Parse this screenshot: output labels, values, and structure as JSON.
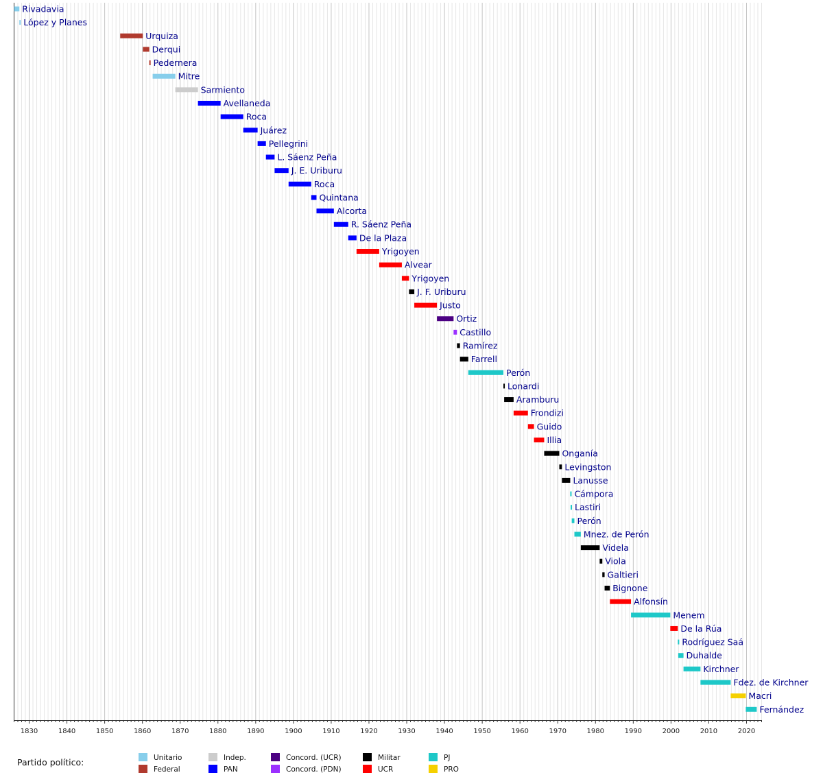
{
  "chart_data": {
    "type": "bar",
    "orientation": "horizontal-timeline",
    "xlim": [
      1826,
      2024
    ],
    "x_ticks": [
      1830,
      1840,
      1850,
      1860,
      1870,
      1880,
      1890,
      1900,
      1910,
      1920,
      1930,
      1940,
      1950,
      1960,
      1970,
      1980,
      1990,
      2000,
      2010,
      2020
    ],
    "grid": true,
    "legend_title": "Partido político:",
    "legend_placement": "bottom",
    "legend": [
      {
        "key": "Unitario",
        "label": "Unitario",
        "color": "#87CEEB"
      },
      {
        "key": "Federal",
        "label": "Federal",
        "color": "#B03A2E"
      },
      {
        "key": "Indep",
        "label": "Indep.",
        "color": "#CCCCCC"
      },
      {
        "key": "PAN",
        "label": "PAN",
        "color": "#0000FF"
      },
      {
        "key": "ConcordUCR",
        "label": "Concord. (UCR)",
        "color": "#4B0082"
      },
      {
        "key": "ConcordPDN",
        "label": "Concord. (PDN)",
        "color": "#9B30FF"
      },
      {
        "key": "Militar",
        "label": "Militar",
        "color": "#000000"
      },
      {
        "key": "UCR",
        "label": "UCR",
        "color": "#FF0000"
      },
      {
        "key": "PJ",
        "label": "PJ",
        "color": "#1EC8C8"
      },
      {
        "key": "PRO",
        "label": "PRO",
        "color": "#F5D000"
      }
    ],
    "bars": [
      {
        "name": "Rivadavia",
        "start": 1826.1,
        "end": 1827.5,
        "party": "Unitario"
      },
      {
        "name": "López y Planes",
        "start": 1827.5,
        "end": 1827.7,
        "party": "Unitario"
      },
      {
        "name": "Urquiza",
        "start": 1854.2,
        "end": 1860.2,
        "party": "Federal"
      },
      {
        "name": "Derqui",
        "start": 1860.2,
        "end": 1861.9,
        "party": "Federal"
      },
      {
        "name": "Pedernera",
        "start": 1861.9,
        "end": 1862.0,
        "party": "Federal"
      },
      {
        "name": "Mitre",
        "start": 1862.8,
        "end": 1868.8,
        "party": "Unitario"
      },
      {
        "name": "Sarmiento",
        "start": 1868.8,
        "end": 1874.8,
        "party": "Indep"
      },
      {
        "name": "Avellaneda",
        "start": 1874.8,
        "end": 1880.8,
        "party": "PAN"
      },
      {
        "name": "Roca",
        "start": 1880.8,
        "end": 1886.8,
        "party": "PAN"
      },
      {
        "name": "Juárez",
        "start": 1886.8,
        "end": 1890.6,
        "party": "PAN"
      },
      {
        "name": "Pellegrini",
        "start": 1890.6,
        "end": 1892.8,
        "party": "PAN"
      },
      {
        "name": "L. Sáenz Peña",
        "start": 1892.8,
        "end": 1895.1,
        "party": "PAN"
      },
      {
        "name": "J. E. Uriburu",
        "start": 1895.1,
        "end": 1898.8,
        "party": "PAN"
      },
      {
        "name": "Roca",
        "start": 1898.8,
        "end": 1904.8,
        "party": "PAN"
      },
      {
        "name": "Quintana",
        "start": 1904.8,
        "end": 1906.2,
        "party": "PAN"
      },
      {
        "name": "Alcorta",
        "start": 1906.2,
        "end": 1910.8,
        "party": "PAN"
      },
      {
        "name": "R. Sáenz Peña",
        "start": 1910.8,
        "end": 1914.6,
        "party": "PAN"
      },
      {
        "name": "De la Plaza",
        "start": 1914.6,
        "end": 1916.8,
        "party": "PAN"
      },
      {
        "name": "Yrigoyen",
        "start": 1916.8,
        "end": 1922.8,
        "party": "UCR"
      },
      {
        "name": "Alvear",
        "start": 1922.8,
        "end": 1928.8,
        "party": "UCR"
      },
      {
        "name": "Yrigoyen",
        "start": 1928.8,
        "end": 1930.7,
        "party": "UCR"
      },
      {
        "name": "J. F. Uriburu",
        "start": 1930.7,
        "end": 1932.1,
        "party": "Militar"
      },
      {
        "name": "Justo",
        "start": 1932.1,
        "end": 1938.1,
        "party": "UCR"
      },
      {
        "name": "Ortiz",
        "start": 1938.1,
        "end": 1942.5,
        "party": "ConcordUCR"
      },
      {
        "name": "Castillo",
        "start": 1942.5,
        "end": 1943.4,
        "party": "ConcordPDN"
      },
      {
        "name": "Ramírez",
        "start": 1943.4,
        "end": 1944.2,
        "party": "Militar"
      },
      {
        "name": "Farrell",
        "start": 1944.2,
        "end": 1946.4,
        "party": "Militar"
      },
      {
        "name": "Perón",
        "start": 1946.4,
        "end": 1955.7,
        "party": "PJ"
      },
      {
        "name": "Lonardi",
        "start": 1955.7,
        "end": 1955.9,
        "party": "Militar"
      },
      {
        "name": "Aramburu",
        "start": 1955.9,
        "end": 1958.4,
        "party": "Militar"
      },
      {
        "name": "Frondizi",
        "start": 1958.4,
        "end": 1962.2,
        "party": "UCR"
      },
      {
        "name": "Guido",
        "start": 1962.2,
        "end": 1963.8,
        "party": "UCR"
      },
      {
        "name": "Illia",
        "start": 1963.8,
        "end": 1966.5,
        "party": "UCR"
      },
      {
        "name": "Onganía",
        "start": 1966.5,
        "end": 1970.5,
        "party": "Militar"
      },
      {
        "name": "Levingston",
        "start": 1970.5,
        "end": 1971.2,
        "party": "Militar"
      },
      {
        "name": "Lanusse",
        "start": 1971.2,
        "end": 1973.4,
        "party": "Militar"
      },
      {
        "name": "Cámpora",
        "start": 1973.4,
        "end": 1973.5,
        "party": "PJ"
      },
      {
        "name": "Lastiri",
        "start": 1973.5,
        "end": 1973.8,
        "party": "PJ"
      },
      {
        "name": "Perón",
        "start": 1973.8,
        "end": 1974.5,
        "party": "PJ"
      },
      {
        "name": "Mnez. de Perón",
        "start": 1974.5,
        "end": 1976.2,
        "party": "PJ"
      },
      {
        "name": "Videla",
        "start": 1976.2,
        "end": 1981.2,
        "party": "Militar"
      },
      {
        "name": "Viola",
        "start": 1981.2,
        "end": 1981.9,
        "party": "Militar"
      },
      {
        "name": "Galtieri",
        "start": 1981.9,
        "end": 1982.5,
        "party": "Militar"
      },
      {
        "name": "Bignone",
        "start": 1982.5,
        "end": 1983.9,
        "party": "Militar"
      },
      {
        "name": "Alfonsín",
        "start": 1983.9,
        "end": 1989.5,
        "party": "UCR"
      },
      {
        "name": "Menem",
        "start": 1989.5,
        "end": 1999.9,
        "party": "PJ"
      },
      {
        "name": "De la Rúa",
        "start": 1999.9,
        "end": 2001.9,
        "party": "UCR"
      },
      {
        "name": "Rodríguez Saá",
        "start": 2001.9,
        "end": 2002.0,
        "party": "PJ"
      },
      {
        "name": "Duhalde",
        "start": 2002.0,
        "end": 2003.4,
        "party": "PJ"
      },
      {
        "name": "Kirchner",
        "start": 2003.4,
        "end": 2007.9,
        "party": "PJ"
      },
      {
        "name": "Fdez. de Kirchner",
        "start": 2007.9,
        "end": 2015.9,
        "party": "PJ"
      },
      {
        "name": "Macri",
        "start": 2015.9,
        "end": 2019.9,
        "party": "PRO"
      },
      {
        "name": "Fernández",
        "start": 2019.9,
        "end": 2022.8,
        "party": "PJ"
      }
    ]
  }
}
